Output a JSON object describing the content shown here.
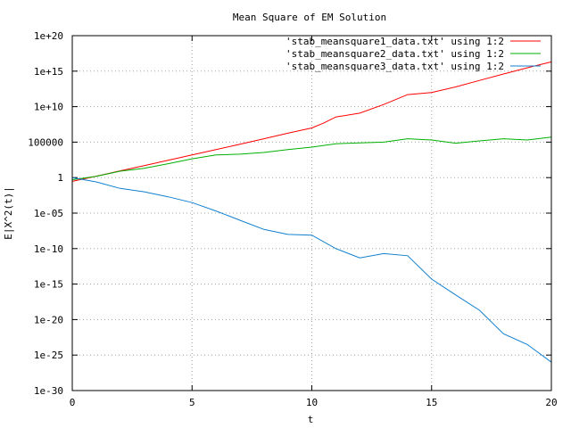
{
  "chart_data": {
    "type": "line",
    "title": "Mean Square of EM Solution",
    "xlabel": "t",
    "ylabel": "E|X^2(t)|",
    "xlim": [
      0,
      20
    ],
    "ylim": [
      1e-30,
      1e+20
    ],
    "y_scale": "log",
    "grid": true,
    "legend_position": "top-right",
    "x_ticks": [
      0,
      5,
      10,
      15,
      20
    ],
    "x_tick_labels": [
      "0",
      "5",
      "10",
      "15",
      "20"
    ],
    "y_ticks": [
      1e-30,
      1e-25,
      1e-20,
      1e-15,
      1e-10,
      1e-05,
      1,
      100000,
      10000000000.0,
      1000000000000000.0,
      1e+20
    ],
    "y_tick_labels": [
      "1e-30",
      "1e-25",
      "1e-20",
      "1e-15",
      "1e-10",
      "1e-05",
      "1",
      "100000",
      "1e+10",
      "1e+15",
      "1e+20"
    ],
    "series": [
      {
        "name": "'stab_meansquare1_data.txt' using 1:2",
        "color": "#ff0000",
        "x": [
          0,
          1,
          2,
          3,
          4,
          5,
          6,
          7,
          8,
          9,
          10,
          10.5,
          11,
          12,
          13,
          14,
          15,
          16,
          17,
          18,
          19,
          20
        ],
        "y": [
          0.3,
          1.6,
          9,
          50,
          280,
          1600,
          9000,
          50000.0,
          300000.0,
          1800000.0,
          10000000.0,
          50000000.0,
          350000000.0,
          1200000000.0,
          20000000000.0,
          500000000000.0,
          1000000000000.0,
          6000000000000.0,
          50000000000000.0,
          400000000000000.0,
          3000000000000000.0,
          2e+16
        ]
      },
      {
        "name": "'stab_meansquare2_data.txt' using 1:2",
        "color": "#00b000",
        "x": [
          0,
          1,
          2,
          3,
          4,
          5,
          6,
          7,
          8,
          9,
          10,
          11,
          12,
          13,
          14,
          15,
          16,
          17,
          18,
          19,
          20
        ],
        "y": [
          0.5,
          1.5,
          8,
          20,
          90,
          450,
          1600,
          2000,
          3500,
          9000,
          20000.0,
          60000.0,
          80000.0,
          100000.0,
          300000.0,
          200000.0,
          70000.0,
          150000.0,
          300000.0,
          200000.0,
          500000.0
        ]
      },
      {
        "name": "'stab_meansquare3_data.txt' using 1:2",
        "color": "#1080d0",
        "x": [
          0,
          1,
          2,
          3,
          4,
          5,
          6,
          7,
          8,
          9,
          10,
          11,
          12,
          13,
          14,
          15,
          16,
          17,
          18,
          19,
          20
        ],
        "y": [
          1,
          0.25,
          0.03,
          0.01,
          0.002,
          0.0003,
          2e-05,
          1e-06,
          5e-08,
          1e-08,
          8e-09,
          1e-10,
          5e-12,
          2e-11,
          1e-11,
          5e-15,
          3e-17,
          2e-19,
          1e-22,
          3e-24,
          1e-26
        ]
      }
    ]
  }
}
